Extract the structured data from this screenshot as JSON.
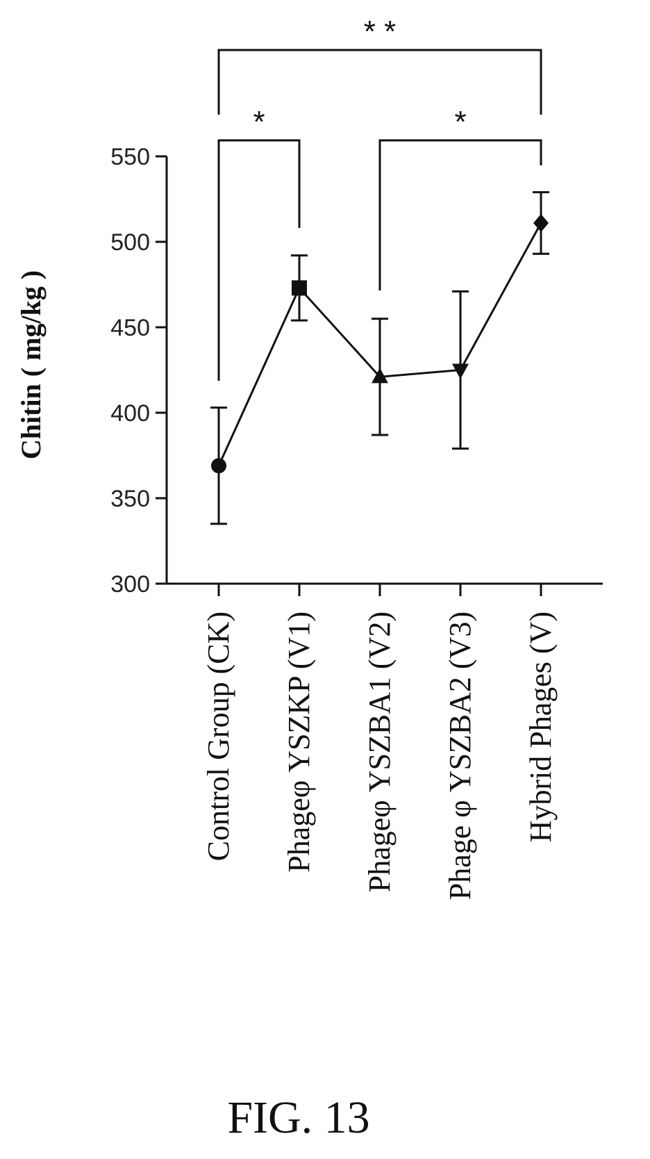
{
  "chart_data": {
    "type": "line",
    "title": "",
    "xlabel": "",
    "ylabel": "Chitin ( mg/kg )",
    "ylim": [
      300,
      550
    ],
    "yticks": [
      300,
      350,
      400,
      450,
      500,
      550
    ],
    "categories": [
      "Control Group (CK)",
      "Phageφ YSZKP (V1)",
      "Phageφ YSZBA1 (V2)",
      "Phage φ YSZBA2 (V3)",
      "Hybrid Phages (V)"
    ],
    "series": [
      {
        "values": [
          369,
          473,
          421,
          425,
          511
        ],
        "error": [
          34,
          19,
          34,
          46,
          18
        ],
        "markers": [
          "circle",
          "square",
          "triangle-up",
          "triangle-down",
          "diamond"
        ]
      }
    ],
    "annotations": [
      {
        "from": 0,
        "to": 1,
        "label": "*",
        "level": 1
      },
      {
        "from": 2,
        "to": 4,
        "label": "*",
        "level": 1
      },
      {
        "from": 0,
        "to": 4,
        "label": "* *",
        "level": 2
      }
    ],
    "grid": false,
    "colors": {
      "line": "#111111"
    }
  },
  "caption": "FIG. 13"
}
